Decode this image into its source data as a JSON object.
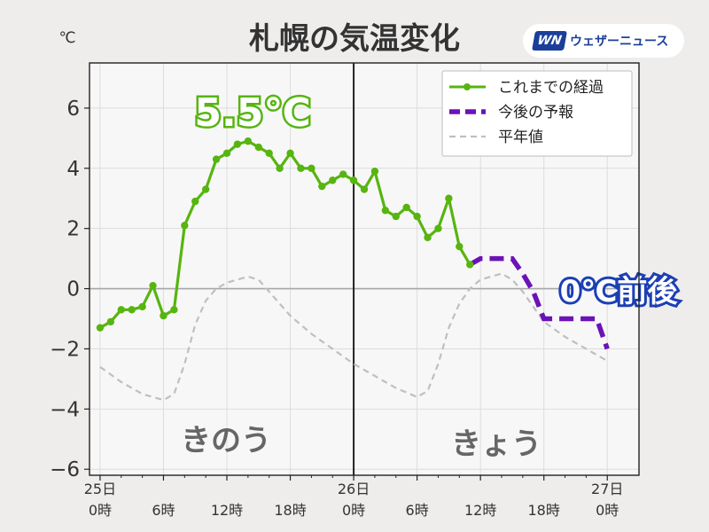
{
  "logo": {
    "mark": "WN",
    "text": "ウェザーニュース"
  },
  "chart_data": {
    "type": "line",
    "title": "札幌の気温変化",
    "unit": "℃",
    "ylim": [
      -6.2,
      7.5
    ],
    "xlim": [
      -1,
      51
    ],
    "yticks": [
      -6,
      -4,
      -2,
      0,
      2,
      4,
      6
    ],
    "ytick_labels": [
      "−6",
      "−4",
      "−2",
      "0",
      "2",
      "4",
      "6"
    ],
    "xticks": [
      {
        "x": 0,
        "top": "25日",
        "bottom": "0時"
      },
      {
        "x": 6,
        "top": "",
        "bottom": "6時"
      },
      {
        "x": 12,
        "top": "",
        "bottom": "12時"
      },
      {
        "x": 18,
        "top": "",
        "bottom": "18時"
      },
      {
        "x": 24,
        "top": "26日",
        "bottom": "0時"
      },
      {
        "x": 30,
        "top": "",
        "bottom": "6時"
      },
      {
        "x": 36,
        "top": "",
        "bottom": "12時"
      },
      {
        "x": 42,
        "top": "",
        "bottom": "18時"
      },
      {
        "x": 48,
        "top": "27日",
        "bottom": "0時"
      }
    ],
    "grid": true,
    "legend_position": "top-right",
    "day_divider_x": 24,
    "zero_line_y": 0,
    "series": [
      {
        "name": "これまでの経過",
        "color": "#56b50f",
        "style": "solid-markers",
        "x": [
          0,
          1,
          2,
          3,
          4,
          5,
          6,
          7,
          8,
          9,
          10,
          11,
          12,
          13,
          14,
          15,
          16,
          17,
          18,
          19,
          20,
          21,
          22,
          23,
          24,
          25,
          26,
          27,
          28,
          29,
          30,
          31,
          32,
          33,
          34,
          35
        ],
        "y": [
          -1.3,
          -1.1,
          -0.7,
          -0.7,
          -0.6,
          0.1,
          -0.9,
          -0.7,
          2.1,
          2.9,
          3.3,
          4.3,
          4.5,
          4.8,
          4.9,
          4.7,
          4.5,
          4.0,
          4.5,
          4.0,
          4.0,
          3.4,
          3.6,
          3.8,
          3.6,
          3.3,
          3.9,
          2.6,
          2.4,
          2.7,
          2.4,
          1.7,
          2.0,
          3.0,
          1.4,
          0.8
        ]
      },
      {
        "name": "今後の予報",
        "color": "#6b12b8",
        "style": "dashed-thick",
        "x": [
          35,
          36,
          37,
          38,
          39,
          40,
          41,
          42,
          43,
          44,
          45,
          46,
          47,
          48
        ],
        "y": [
          0.8,
          1.0,
          1.0,
          1.0,
          1.0,
          0.5,
          -0.1,
          -1.0,
          -1.0,
          -1.0,
          -1.0,
          -1.0,
          -1.0,
          -2.0
        ]
      },
      {
        "name": "平年値",
        "color": "#c0bfbf",
        "style": "dashed-thin",
        "x": [
          0,
          2,
          4,
          6,
          7,
          8,
          9,
          10,
          11,
          12,
          13,
          14,
          15,
          16,
          17,
          18,
          20,
          22,
          24,
          26,
          28,
          30,
          31,
          32,
          33,
          34,
          35,
          36,
          37,
          38,
          39,
          40,
          41,
          42,
          44,
          46,
          48
        ],
        "y": [
          -2.6,
          -3.1,
          -3.5,
          -3.7,
          -3.5,
          -2.5,
          -1.2,
          -0.4,
          0.0,
          0.2,
          0.3,
          0.4,
          0.3,
          -0.1,
          -0.5,
          -0.9,
          -1.5,
          -2.0,
          -2.5,
          -2.9,
          -3.3,
          -3.6,
          -3.4,
          -2.5,
          -1.3,
          -0.5,
          0.0,
          0.3,
          0.4,
          0.5,
          0.3,
          -0.1,
          -0.6,
          -1.1,
          -1.6,
          -2.0,
          -2.4
        ]
      }
    ],
    "annotations": {
      "max_label": "5.5℃",
      "forecast_label": "0℃前後",
      "yesterday_label": "きのう",
      "today_label": "きょう"
    }
  }
}
